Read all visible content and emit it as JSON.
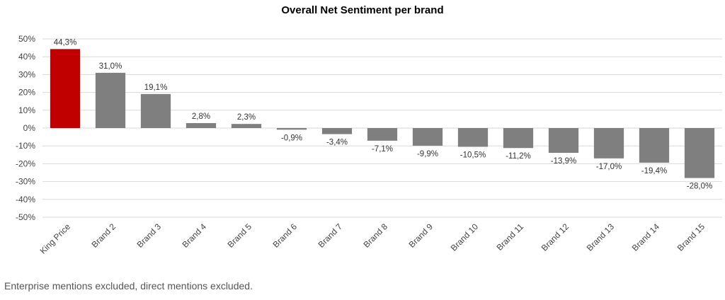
{
  "chart_data": {
    "type": "bar",
    "title": "Overall Net Sentiment per brand",
    "categories": [
      "King Price",
      "Brand 2",
      "Brand 3",
      "Brand 4",
      "Brand 5",
      "Brand 6",
      "Brand 7",
      "Brand 8",
      "Brand 9",
      "Brand 10",
      "Brand 11",
      "Brand 12",
      "Brand 13",
      "Brand 14",
      "Brand 15"
    ],
    "values": [
      44.3,
      31.0,
      19.1,
      2.8,
      2.3,
      -0.9,
      -3.4,
      -7.1,
      -9.9,
      -10.5,
      -11.2,
      -13.9,
      -17.0,
      -19.4,
      -28.0
    ],
    "data_labels": [
      "44,3%",
      "31,0%",
      "19,1%",
      "2,8%",
      "2,3%",
      "-0,9%",
      "-3,4%",
      "-7,1%",
      "-9,9%",
      "-10,5%",
      "-11,2%",
      "-13,9%",
      "-17,0%",
      "-19,4%",
      "-28,0%"
    ],
    "ylim": [
      -50,
      50
    ],
    "yticks": [
      50,
      40,
      30,
      20,
      10,
      0,
      -10,
      -20,
      -30,
      -40,
      -50
    ],
    "ytick_labels": [
      "50%",
      "40%",
      "30%",
      "20%",
      "10%",
      "0%",
      "-10%",
      "-20%",
      "-30%",
      "-40%",
      "-50%"
    ],
    "grid": true,
    "colors": {
      "highlight": "#c00000",
      "default": "#7f7f7f",
      "grid": "#d9d9d9"
    },
    "highlight_index": 0
  },
  "footnote": "Enterprise mentions excluded, direct mentions excluded."
}
